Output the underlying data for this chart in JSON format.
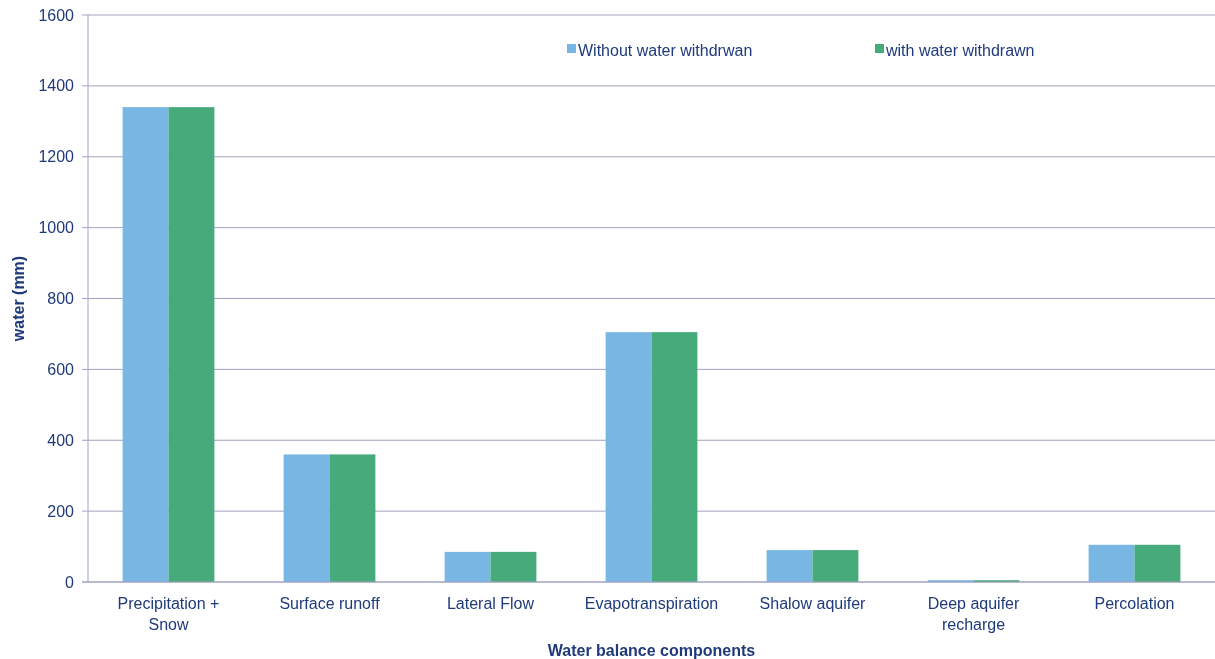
{
  "chart_data": {
    "type": "bar",
    "xlabel": "Water balance components",
    "ylabel": "water (mm)",
    "categories": [
      "Precipitation + Snow",
      "Surface runoff",
      "Lateral Flow",
      "Evapotranspiration",
      "Shalow aquifer",
      "Deep aquifer recharge",
      "Percolation"
    ],
    "series": [
      {
        "name": "Without water withdrwan",
        "color": "#78b6e4",
        "values": [
          1340,
          360,
          85,
          705,
          90,
          5,
          105
        ]
      },
      {
        "name": "with water withdrawn",
        "color": "#47aa7a",
        "values": [
          1340,
          360,
          85,
          705,
          90,
          5,
          105
        ]
      }
    ],
    "ylim": [
      0,
      1600
    ],
    "yticks": [
      0,
      200,
      400,
      600,
      800,
      1000,
      1200,
      1400,
      1600
    ],
    "grid": "y",
    "legend": "top right"
  }
}
